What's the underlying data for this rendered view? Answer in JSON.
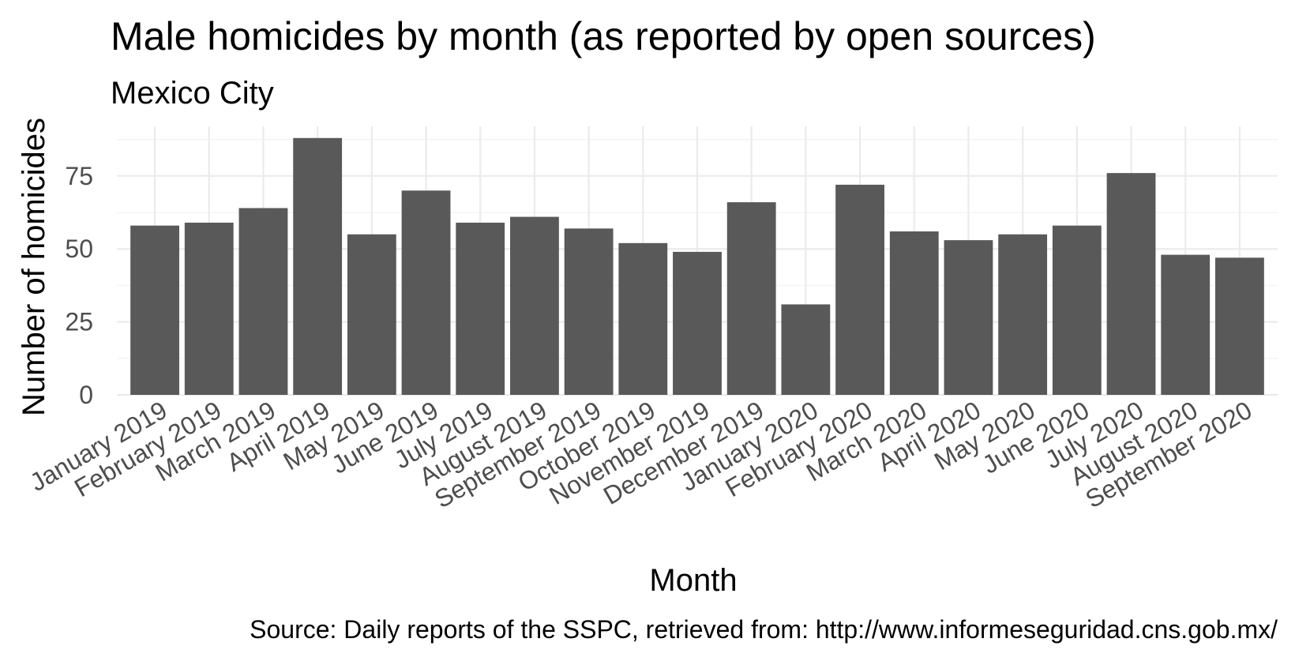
{
  "chart_data": {
    "type": "bar",
    "title": "Male homicides by month (as reported by open sources)",
    "subtitle": "Mexico City",
    "xlabel": "Month",
    "ylabel": "Number of homicides",
    "caption": "Source: Daily reports of the SSPC, retrieved from: http://www.informeseguridad.cns.gob.mx/",
    "categories": [
      "January 2019",
      "February 2019",
      "March 2019",
      "April 2019",
      "May 2019",
      "June 2019",
      "July 2019",
      "August 2019",
      "September 2019",
      "October 2019",
      "November 2019",
      "December 2019",
      "January 2020",
      "February 2020",
      "March 2020",
      "April 2020",
      "May 2020",
      "June 2020",
      "July 2020",
      "August 2020",
      "September 2020"
    ],
    "values": [
      58,
      59,
      64,
      88,
      55,
      70,
      59,
      61,
      57,
      52,
      49,
      66,
      31,
      72,
      56,
      53,
      55,
      58,
      76,
      48,
      47
    ],
    "ylim": [
      0,
      92
    ],
    "yticks": [
      0,
      25,
      50,
      75
    ],
    "ytick_labels": [
      "0",
      "25",
      "50",
      "75"
    ],
    "grid": true,
    "legend": "none",
    "bar_color": "#595959"
  }
}
